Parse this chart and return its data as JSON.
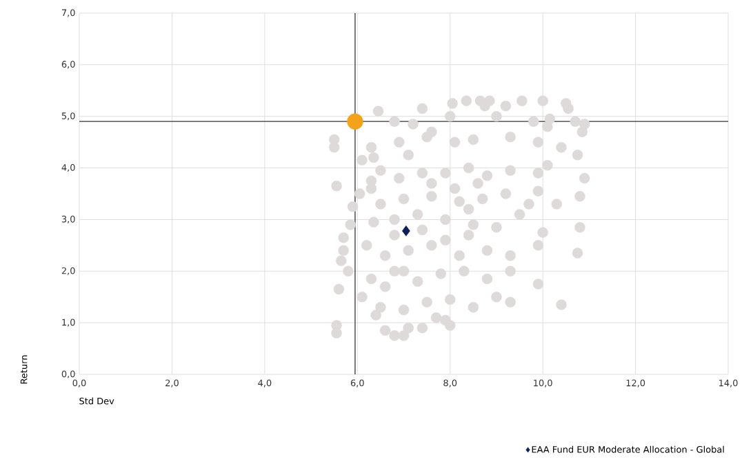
{
  "chart_data": {
    "type": "scatter",
    "xlabel": "Std Dev",
    "ylabel": "Return",
    "xlim": [
      0,
      14
    ],
    "ylim": [
      0,
      7
    ],
    "xticks": [
      {
        "value": 0,
        "label": "0,0"
      },
      {
        "value": 2,
        "label": "2,0"
      },
      {
        "value": 4,
        "label": "4,0"
      },
      {
        "value": 6,
        "label": "6,0"
      },
      {
        "value": 8,
        "label": "8,0"
      },
      {
        "value": 10,
        "label": "10,0"
      },
      {
        "value": 12,
        "label": "12,0"
      },
      {
        "value": 14,
        "label": "14,0"
      }
    ],
    "yticks": [
      {
        "value": 0,
        "label": "0,0"
      },
      {
        "value": 1,
        "label": "1,0"
      },
      {
        "value": 2,
        "label": "2,0"
      },
      {
        "value": 3,
        "label": "3,0"
      },
      {
        "value": 4,
        "label": "4,0"
      },
      {
        "value": 5,
        "label": "5,0"
      },
      {
        "value": 6,
        "label": "6,0"
      },
      {
        "value": 7,
        "label": "7,0"
      }
    ],
    "grid": true,
    "legend": "bottom right",
    "ref_lines": [
      {
        "axis": "x",
        "value": 5.95,
        "color": "#333333"
      },
      {
        "axis": "y",
        "value": 4.9,
        "color": "#333333"
      }
    ],
    "series": [
      {
        "color": "#dedad9",
        "marker": "circle",
        "x": [
          6.45,
          7.4,
          8.05,
          8.35,
          8.65,
          8.85,
          9.2,
          9.55,
          10.0,
          10.5,
          10.55,
          8.75,
          6.8,
          7.2,
          8.0,
          9.0,
          9.8,
          10.15,
          10.7,
          10.9,
          10.85,
          10.1,
          7.6,
          6.3,
          6.35,
          6.9,
          7.5,
          8.1,
          8.5,
          9.3,
          9.9,
          10.4,
          10.75,
          6.1,
          7.1,
          6.5,
          6.3,
          6.9,
          7.4,
          7.9,
          8.4,
          8.8,
          9.3,
          9.9,
          10.1,
          10.9,
          6.05,
          6.3,
          5.9,
          6.5,
          7.0,
          7.6,
          8.2,
          8.7,
          9.2,
          9.7,
          10.3,
          10.8,
          9.9,
          5.85,
          6.35,
          6.8,
          7.4,
          7.9,
          8.5,
          9.0,
          9.5,
          10.0,
          10.8,
          5.7,
          5.7,
          6.2,
          6.6,
          7.1,
          7.6,
          8.2,
          8.8,
          9.3,
          9.9,
          10.75,
          5.65,
          5.8,
          6.3,
          6.8,
          7.3,
          7.8,
          8.3,
          8.8,
          9.3,
          9.9,
          5.6,
          6.1,
          6.5,
          7.0,
          7.5,
          8.0,
          8.5,
          9.0,
          9.3,
          10.4,
          6.4,
          7.7,
          5.55,
          5.55,
          6.6,
          6.8,
          7.1,
          7.0,
          7.4,
          8.0,
          7.9,
          7.6,
          8.1,
          8.4,
          7.9,
          7.3,
          8.6,
          6.8,
          7.0,
          6.6,
          8.4,
          5.5,
          5.5,
          5.55
        ],
        "values": [
          5.1,
          5.15,
          5.25,
          5.3,
          5.3,
          5.3,
          5.2,
          5.3,
          5.3,
          5.25,
          5.15,
          5.2,
          4.9,
          4.85,
          5.0,
          5.0,
          4.9,
          4.95,
          4.9,
          4.85,
          4.7,
          4.8,
          4.7,
          4.4,
          4.2,
          4.5,
          4.6,
          4.5,
          4.55,
          4.6,
          4.5,
          4.4,
          4.25,
          4.15,
          4.25,
          3.95,
          3.75,
          3.8,
          3.9,
          3.9,
          4.0,
          3.85,
          3.95,
          3.9,
          4.05,
          3.8,
          3.5,
          3.6,
          3.25,
          3.3,
          3.4,
          3.45,
          3.35,
          3.4,
          3.5,
          3.3,
          3.3,
          3.45,
          3.55,
          2.9,
          2.95,
          3.0,
          2.8,
          3.0,
          2.9,
          2.85,
          3.1,
          2.75,
          2.85,
          2.65,
          2.4,
          2.5,
          2.3,
          2.4,
          2.5,
          2.3,
          2.4,
          2.3,
          2.5,
          2.35,
          2.2,
          2.0,
          1.85,
          2.0,
          1.8,
          1.95,
          2.0,
          1.85,
          2.0,
          1.75,
          1.65,
          1.5,
          1.3,
          1.25,
          1.4,
          1.45,
          1.3,
          1.5,
          1.4,
          1.35,
          1.15,
          1.1,
          0.95,
          0.8,
          0.85,
          0.75,
          0.9,
          0.75,
          0.9,
          0.95,
          1.05,
          3.7,
          3.6,
          3.2,
          2.6,
          3.1,
          3.7,
          2.7,
          2.0,
          1.7,
          2.7,
          4.55,
          4.4,
          3.65
        ]
      },
      {
        "color": "#f5a21b",
        "marker": "circle",
        "x": [
          5.95
        ],
        "values": [
          4.9
        ]
      },
      {
        "name": "EAA Fund EUR Moderate Allocation - Global",
        "color": "#0d1f5c",
        "marker": "diamond",
        "x": [
          7.05
        ],
        "values": [
          2.78
        ]
      }
    ]
  }
}
